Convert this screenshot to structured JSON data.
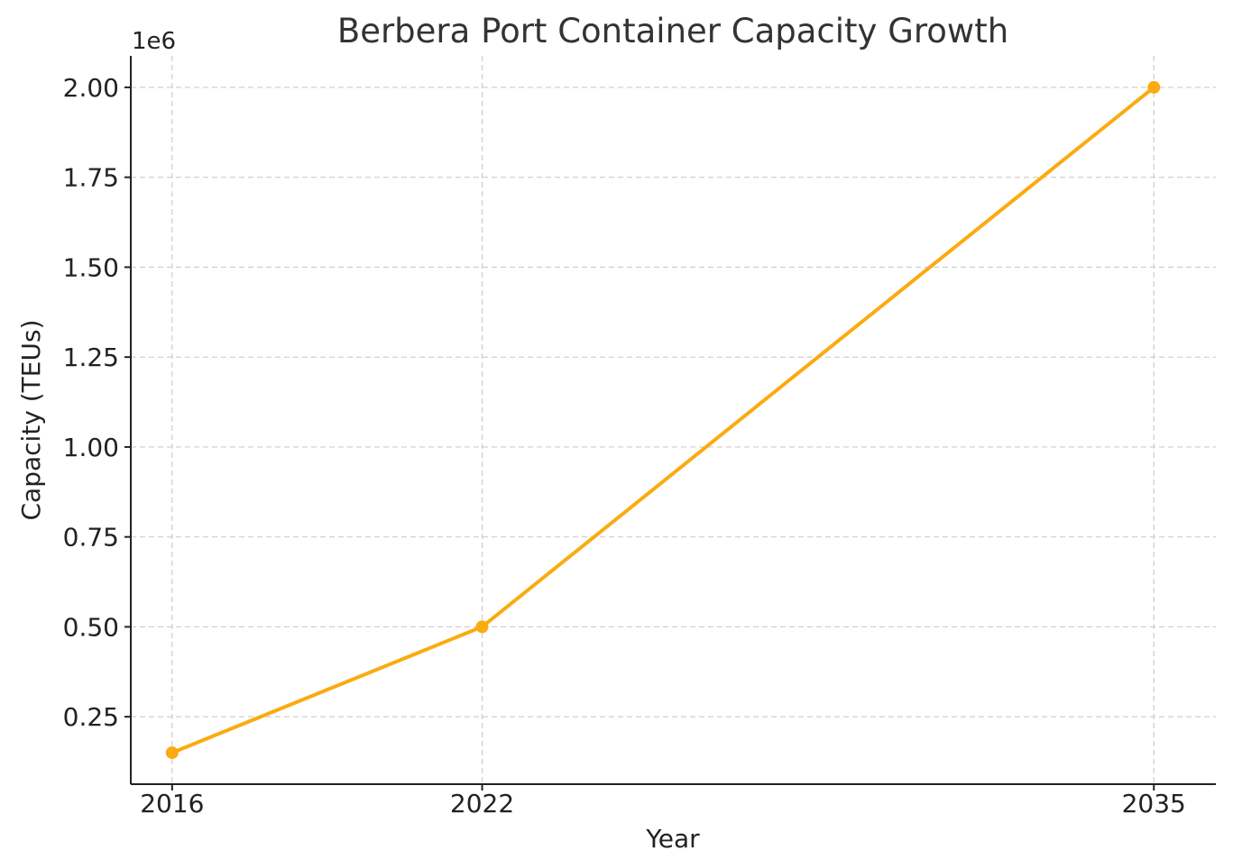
{
  "chart_data": {
    "type": "line",
    "title": "Berbera Port Container Capacity Growth",
    "xlabel": "Year",
    "ylabel": "Capacity (TEUs)",
    "y_offset_label": "1e6",
    "x": [
      2016,
      2022,
      2035
    ],
    "x_tick_labels": [
      "2016",
      "2022",
      "2035"
    ],
    "series": [
      {
        "values": [
          150000,
          500000,
          2000000
        ],
        "color": "#FAAB11"
      }
    ],
    "y_ticks": [
      250000,
      500000,
      750000,
      1000000,
      1250000,
      1500000,
      1750000,
      2000000
    ],
    "y_tick_labels": [
      "0.25",
      "0.50",
      "0.75",
      "1.00",
      "1.25",
      "1.50",
      "1.75",
      "2.00"
    ],
    "xlim": [
      2015.2,
      2036.2
    ],
    "ylim": [
      62500,
      2087500
    ],
    "grid": true,
    "marker": "circle"
  }
}
